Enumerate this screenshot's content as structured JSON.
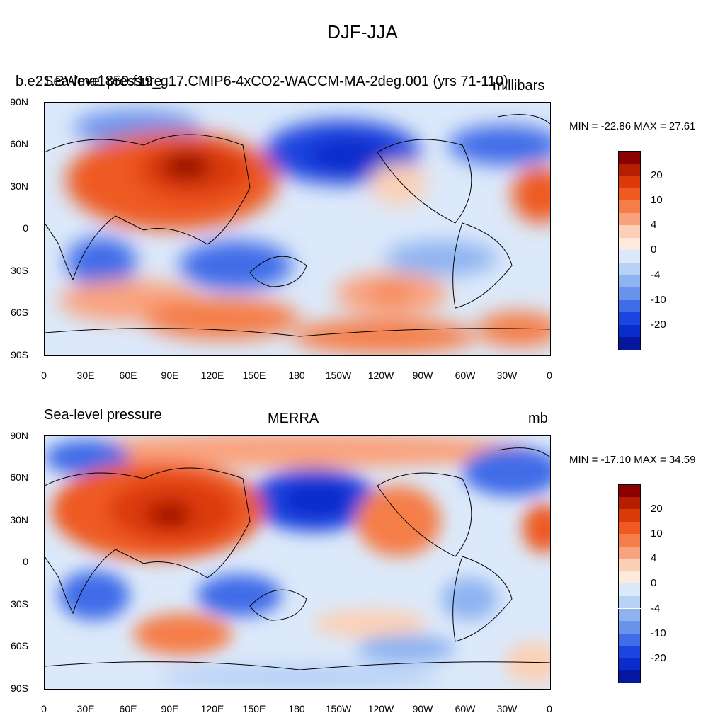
{
  "figure": {
    "title": "DJF-JJA"
  },
  "panels": [
    {
      "left_title": "Sea-level pressure",
      "center_title": "b.e21.BWma1850.f19_g17.CMIP6-4xCO2-WACCM-MA-2deg.001 (yrs 71-110)",
      "right_title": "millibars",
      "stats": "MIN = -22.86 MAX =  27.61",
      "lat_labels": [
        "90N",
        "60N",
        "30N",
        "0",
        "30S",
        "60S",
        "90S"
      ],
      "lon_labels": [
        "0",
        "30E",
        "60E",
        "90E",
        "120E",
        "150E",
        "180",
        "150W",
        "120W",
        "90W",
        "60W",
        "30W",
        "0"
      ]
    },
    {
      "left_title": "Sea-level pressure",
      "center_title": "MERRA",
      "right_title": "mb",
      "stats": "MIN = -17.10 MAX =  34.59",
      "lat_labels": [
        "90N",
        "60N",
        "30N",
        "0",
        "30S",
        "60S",
        "90S"
      ],
      "lon_labels": [
        "0",
        "30E",
        "60E",
        "90E",
        "120E",
        "150E",
        "180",
        "150W",
        "120W",
        "90W",
        "60W",
        "30W",
        "0"
      ]
    }
  ],
  "colorbar": {
    "colors": [
      "#8b0000",
      "#b51e00",
      "#dc3a08",
      "#ee5a20",
      "#f57e48",
      "#f9a37e",
      "#fcd0b6",
      "#fdeadc",
      "#dce9fa",
      "#b8d2f6",
      "#8eb3f1",
      "#6a93ec",
      "#3f6ce8",
      "#1a45e0",
      "#0a2ccb",
      "#05169f"
    ],
    "labels": [
      "20",
      "10",
      "4",
      "0",
      "-4",
      "-10",
      "-20"
    ]
  }
}
